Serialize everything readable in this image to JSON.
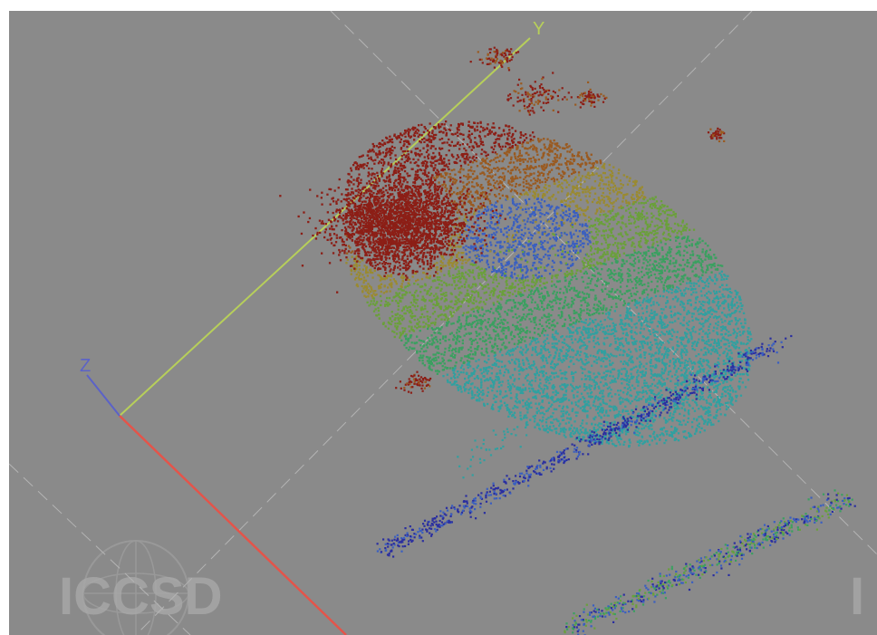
{
  "viewport": {
    "background": "#8a8a8a",
    "axes": [
      {
        "label": "Y",
        "color": "#b7cf5a"
      },
      {
        "label": "Z",
        "color": "#5b62c8"
      },
      {
        "label": "",
        "color": "#e4544a"
      }
    ],
    "colormap": [
      "#8c1e16",
      "#9a5a20",
      "#9a8a30",
      "#6aa03a",
      "#3aa060",
      "#30a0a0",
      "#3a5fc0",
      "#2a2ea0"
    ],
    "watermark": {
      "text": "ICCSD",
      "color": "#a8a8a8"
    }
  }
}
